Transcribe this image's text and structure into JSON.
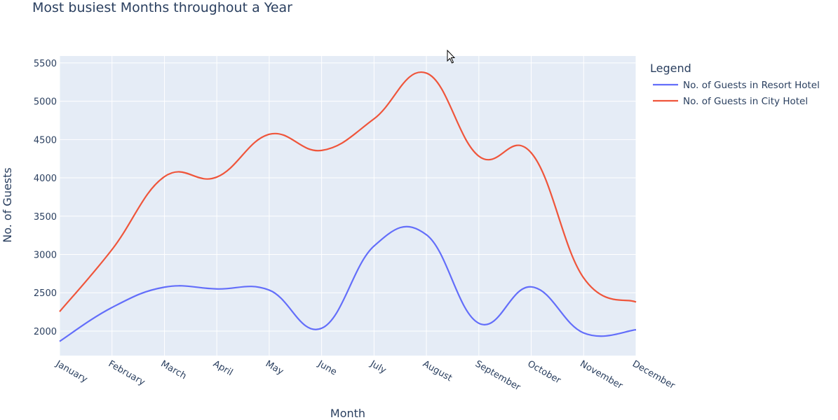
{
  "chart_data": {
    "type": "line",
    "title": "Most busiest Months throughout a Year",
    "xlabel": "Month",
    "ylabel": "No. of Guests",
    "categories": [
      "January",
      "February",
      "March",
      "April",
      "May",
      "June",
      "July",
      "August",
      "September",
      "October",
      "November",
      "December"
    ],
    "series": [
      {
        "name": "No. of Guests in Resort Hotel",
        "color": "#636efa",
        "values": [
          1866,
          2308,
          2573,
          2550,
          2535,
          2037,
          3110,
          3257,
          2102,
          2577,
          1976,
          2017
        ]
      },
      {
        "name": "No. of Guests in City Hotel",
        "color": "#ef553b",
        "values": [
          2254,
          3064,
          4015,
          4010,
          4568,
          4358,
          4770,
          5367,
          4283,
          4326,
          2694,
          2379
        ]
      }
    ],
    "ylim": [
      1680,
      5590
    ],
    "yticks": [
      2000,
      2500,
      3000,
      3500,
      4000,
      4500,
      5000,
      5500
    ],
    "grid": true,
    "line_shape": "spline",
    "legend": {
      "title": "Legend",
      "position": "right"
    },
    "plot_bg": "#e5ecf6"
  },
  "cursor_icon": "mouse-pointer-icon"
}
